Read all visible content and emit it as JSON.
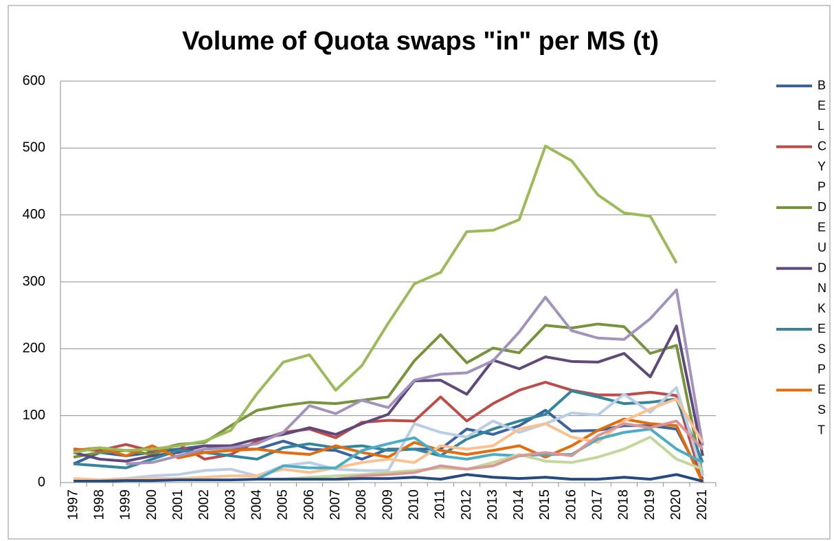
{
  "chart_data": {
    "type": "line",
    "title": "Volume of Quota swaps \"in\" per MS (t)",
    "categories": [
      "1997",
      "1998",
      "1999",
      "2000",
      "2001",
      "2002",
      "2003",
      "2004",
      "2005",
      "2006",
      "2007",
      "2008",
      "2009",
      "2010",
      "2011",
      "2012",
      "2013",
      "2014",
      "2015",
      "2016",
      "2017",
      "2018",
      "2019",
      "2020",
      "2021"
    ],
    "ylim": [
      0,
      600
    ],
    "yticks": [
      0,
      100,
      200,
      300,
      400,
      500,
      600
    ],
    "grid": true,
    "legend": "right",
    "series": [
      {
        "name": "BEL",
        "color": "#3a64a0",
        "values": [
          28,
          45,
          40,
          45,
          50,
          55,
          50,
          50,
          62,
          50,
          48,
          35,
          50,
          50,
          50,
          80,
          72,
          85,
          108,
          77,
          78,
          85,
          85,
          80,
          5
        ]
      },
      {
        "name": "CYP",
        "color": "#be4b48",
        "values": [
          50,
          48,
          57,
          47,
          57,
          35,
          42,
          62,
          75,
          80,
          67,
          90,
          93,
          92,
          128,
          92,
          118,
          138,
          150,
          138,
          131,
          131,
          135,
          130,
          0
        ]
      },
      {
        "name": "DEU",
        "color": "#77933c",
        "values": [
          38,
          45,
          48,
          42,
          57,
          60,
          85,
          108,
          115,
          120,
          118,
          123,
          128,
          182,
          221,
          179,
          201,
          194,
          235,
          231,
          237,
          233,
          193,
          205,
          10
        ]
      },
      {
        "name": "DNK",
        "color": "#5f497a",
        "values": [
          45,
          35,
          32,
          40,
          45,
          55,
          55,
          65,
          72,
          82,
          72,
          88,
          102,
          152,
          153,
          132,
          183,
          170,
          188,
          181,
          180,
          193,
          158,
          234,
          40
        ]
      },
      {
        "name": "ESP",
        "color": "#31859c",
        "values": [
          28,
          25,
          22,
          35,
          48,
          45,
          40,
          35,
          52,
          58,
          52,
          55,
          48,
          50,
          40,
          65,
          80,
          92,
          102,
          137,
          128,
          118,
          120,
          125,
          30
        ]
      },
      {
        "name": "EST",
        "color": "#e46c0a",
        "values": [
          48,
          52,
          40,
          55,
          37,
          45,
          48,
          50,
          45,
          42,
          55,
          45,
          38,
          60,
          48,
          42,
          48,
          55,
          38,
          55,
          78,
          95,
          88,
          85,
          0
        ]
      },
      {
        "color": "#9bbb59",
        "values": [
          45,
          52,
          48,
          50,
          55,
          62,
          78,
          133,
          180,
          191,
          138,
          175,
          238,
          297,
          314,
          375,
          377,
          393,
          503,
          481,
          430,
          403,
          398,
          328,
          null
        ]
      },
      {
        "color": "#a391be",
        "values": [
          null,
          null,
          28,
          30,
          40,
          50,
          52,
          58,
          75,
          115,
          103,
          123,
          112,
          153,
          162,
          164,
          182,
          225,
          277,
          227,
          216,
          214,
          245,
          288,
          55
        ]
      },
      {
        "color": "#b9cde5",
        "values": [
          2,
          4,
          6,
          10,
          12,
          18,
          20,
          10,
          25,
          30,
          20,
          18,
          18,
          88,
          75,
          68,
          92,
          75,
          88,
          104,
          101,
          132,
          105,
          142,
          10
        ]
      },
      {
        "color": "#fac090",
        "values": [
          6,
          4,
          5,
          6,
          6,
          8,
          10,
          10,
          20,
          15,
          22,
          30,
          35,
          30,
          55,
          50,
          55,
          80,
          88,
          68,
          60,
          92,
          110,
          125,
          60
        ]
      },
      {
        "color": "#4bacc6",
        "values": [
          null,
          null,
          null,
          null,
          null,
          null,
          null,
          5,
          25,
          22,
          22,
          48,
          58,
          67,
          40,
          35,
          42,
          40,
          42,
          42,
          65,
          75,
          80,
          50,
          30
        ]
      },
      {
        "color": "#c3d69b",
        "values": [
          null,
          null,
          null,
          null,
          null,
          null,
          null,
          null,
          5,
          8,
          10,
          12,
          15,
          18,
          22,
          20,
          30,
          42,
          32,
          30,
          38,
          50,
          68,
          35,
          20
        ]
      },
      {
        "color": "#d99694",
        "values": [
          null,
          null,
          null,
          null,
          null,
          null,
          null,
          null,
          null,
          null,
          5,
          10,
          12,
          15,
          25,
          20,
          25,
          40,
          45,
          40,
          70,
          88,
          82,
          92,
          50
        ]
      },
      {
        "color": "#254a80",
        "values": [
          2,
          2,
          3,
          3,
          4,
          4,
          4,
          5,
          5,
          5,
          5,
          6,
          6,
          8,
          5,
          12,
          8,
          6,
          8,
          5,
          5,
          8,
          5,
          12,
          2
        ]
      }
    ]
  }
}
